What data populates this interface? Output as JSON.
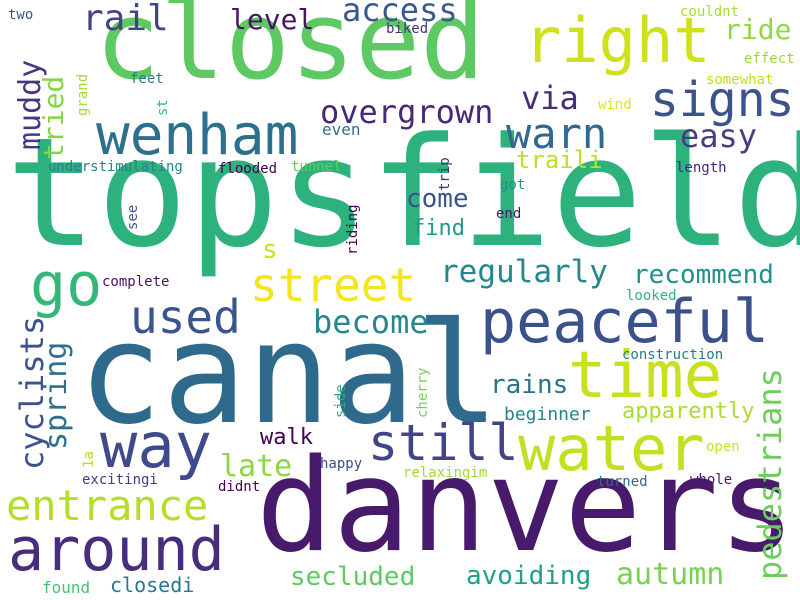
{
  "background": "#ffffff",
  "words": [
    {
      "text": "topsfield",
      "color": "#2db27d",
      "orientation": "horizontal"
    },
    {
      "text": "canal",
      "color": "#2f6a8d",
      "orientation": "horizontal"
    },
    {
      "text": "danvers",
      "color": "#481a6c",
      "orientation": "horizontal"
    },
    {
      "text": "closed",
      "color": "#5ec962",
      "orientation": "horizontal"
    },
    {
      "text": "wenham",
      "color": "#2d708e",
      "orientation": "horizontal"
    },
    {
      "text": "right",
      "color": "#d0e11c",
      "orientation": "horizontal"
    },
    {
      "text": "peaceful",
      "color": "#3b518b",
      "orientation": "horizontal"
    },
    {
      "text": "signs",
      "color": "#3b528b",
      "orientation": "horizontal"
    },
    {
      "text": "time",
      "color": "#c8e020",
      "orientation": "horizontal"
    },
    {
      "text": "water",
      "color": "#c2df23",
      "orientation": "horizontal"
    },
    {
      "text": "around",
      "color": "#472d7b",
      "orientation": "horizontal"
    },
    {
      "text": "way",
      "color": "#3e4a89",
      "orientation": "horizontal"
    },
    {
      "text": "go",
      "color": "#35b779",
      "orientation": "horizontal"
    },
    {
      "text": "warn",
      "color": "#31688e",
      "orientation": "horizontal"
    },
    {
      "text": "street",
      "color": "#f3e51e",
      "orientation": "horizontal"
    },
    {
      "text": "used",
      "color": "#39568c",
      "orientation": "horizontal"
    },
    {
      "text": "still",
      "color": "#414487",
      "orientation": "horizontal"
    },
    {
      "text": "entrance",
      "color": "#b5de2b",
      "orientation": "horizontal"
    },
    {
      "text": "access",
      "color": "#38598c",
      "orientation": "horizontal"
    },
    {
      "text": "rail",
      "color": "#414487",
      "orientation": "horizontal"
    },
    {
      "text": "overgrown",
      "color": "#482878",
      "orientation": "horizontal"
    },
    {
      "text": "regularly",
      "color": "#24878e",
      "orientation": "horizontal"
    },
    {
      "text": "become",
      "color": "#24878e",
      "orientation": "horizontal"
    },
    {
      "text": "recommend",
      "color": "#21918c",
      "orientation": "horizontal"
    },
    {
      "text": "easy",
      "color": "#433e85",
      "orientation": "horizontal"
    },
    {
      "text": "via",
      "color": "#472c7a",
      "orientation": "horizontal"
    },
    {
      "text": "level",
      "color": "#471365",
      "orientation": "horizontal"
    },
    {
      "text": "ride",
      "color": "#90d743",
      "orientation": "horizontal"
    },
    {
      "text": "muddy",
      "color": "#453781",
      "orientation": "vertical"
    },
    {
      "text": "tried",
      "color": "#86d549",
      "orientation": "vertical"
    },
    {
      "text": "cyclists",
      "color": "#3b528b",
      "orientation": "vertical"
    },
    {
      "text": "spring",
      "color": "#2e6f8e",
      "orientation": "vertical"
    },
    {
      "text": "pedestrians",
      "color": "#6ccd5a",
      "orientation": "vertical"
    },
    {
      "text": "autumn",
      "color": "#7ad151",
      "orientation": "horizontal"
    },
    {
      "text": "avoiding",
      "color": "#1fa088",
      "orientation": "horizontal"
    },
    {
      "text": "secluded",
      "color": "#5ec962",
      "orientation": "horizontal"
    },
    {
      "text": "late",
      "color": "#8ed645",
      "orientation": "horizontal"
    },
    {
      "text": "rains",
      "color": "#2c728e",
      "orientation": "horizontal"
    },
    {
      "text": "apparently",
      "color": "#addc30",
      "orientation": "horizontal"
    },
    {
      "text": "walk",
      "color": "#440154",
      "orientation": "horizontal"
    },
    {
      "text": "beginner",
      "color": "#25848e",
      "orientation": "horizontal"
    },
    {
      "text": "traili",
      "color": "#bddf26",
      "orientation": "horizontal"
    },
    {
      "text": "come",
      "color": "#3a538b",
      "orientation": "horizontal"
    },
    {
      "text": "find",
      "color": "#1f998a",
      "orientation": "horizontal"
    },
    {
      "text": "closedi",
      "color": "#2a768e",
      "orientation": "horizontal"
    },
    {
      "text": "found",
      "color": "#4ac16d",
      "orientation": "horizontal"
    },
    {
      "text": "s",
      "color": "#cde11d",
      "orientation": "horizontal"
    },
    {
      "text": "two",
      "color": "#3b528b",
      "orientation": "horizontal"
    },
    {
      "text": "biked",
      "color": "#46327e",
      "orientation": "horizontal"
    },
    {
      "text": "couldnt",
      "color": "#a8db34",
      "orientation": "horizontal"
    },
    {
      "text": "effect",
      "color": "#9dd93b",
      "orientation": "horizontal"
    },
    {
      "text": "somewhat",
      "color": "#c0df25",
      "orientation": "horizontal"
    },
    {
      "text": "feet",
      "color": "#2a788e",
      "orientation": "horizontal"
    },
    {
      "text": "grand",
      "color": "#a2da37",
      "orientation": "vertical"
    },
    {
      "text": "st",
      "color": "#35b779",
      "orientation": "vertical"
    },
    {
      "text": "wind",
      "color": "#e2e418",
      "orientation": "horizontal"
    },
    {
      "text": "even",
      "color": "#2c728e",
      "orientation": "horizontal"
    },
    {
      "text": "understimulating",
      "color": "#26828e",
      "orientation": "horizontal"
    },
    {
      "text": "flooded",
      "color": "#440154",
      "orientation": "horizontal"
    },
    {
      "text": "tunnel",
      "color": "#5ec962",
      "orientation": "horizontal"
    },
    {
      "text": "length",
      "color": "#482475",
      "orientation": "horizontal"
    },
    {
      "text": "trip",
      "color": "#46327e",
      "orientation": "vertical"
    },
    {
      "text": "got",
      "color": "#21918c",
      "orientation": "horizontal"
    },
    {
      "text": "end",
      "color": "#481769",
      "orientation": "horizontal"
    },
    {
      "text": "see",
      "color": "#3b528b",
      "orientation": "vertical"
    },
    {
      "text": "riding",
      "color": "#440154",
      "orientation": "vertical"
    },
    {
      "text": "complete",
      "color": "#471164",
      "orientation": "horizontal"
    },
    {
      "text": "looked",
      "color": "#2db27d",
      "orientation": "horizontal"
    },
    {
      "text": "construction",
      "color": "#29798e",
      "orientation": "horizontal"
    },
    {
      "text": "side",
      "color": "#27ad81",
      "orientation": "vertical"
    },
    {
      "text": "cherry",
      "color": "#77d153",
      "orientation": "vertical"
    },
    {
      "text": "1a",
      "color": "#b2dd2d",
      "orientation": "vertical"
    },
    {
      "text": "happy",
      "color": "#3e4c8a",
      "orientation": "horizontal"
    },
    {
      "text": "open",
      "color": "#cde11d",
      "orientation": "horizontal"
    },
    {
      "text": "relaxingim",
      "color": "#a0da39",
      "orientation": "horizontal"
    },
    {
      "text": "excitingi",
      "color": "#433d84",
      "orientation": "horizontal"
    },
    {
      "text": "didnt",
      "color": "#440154",
      "orientation": "horizontal"
    },
    {
      "text": "turned",
      "color": "#31688e",
      "orientation": "horizontal"
    },
    {
      "text": "whole",
      "color": "#48186a",
      "orientation": "horizontal"
    }
  ]
}
